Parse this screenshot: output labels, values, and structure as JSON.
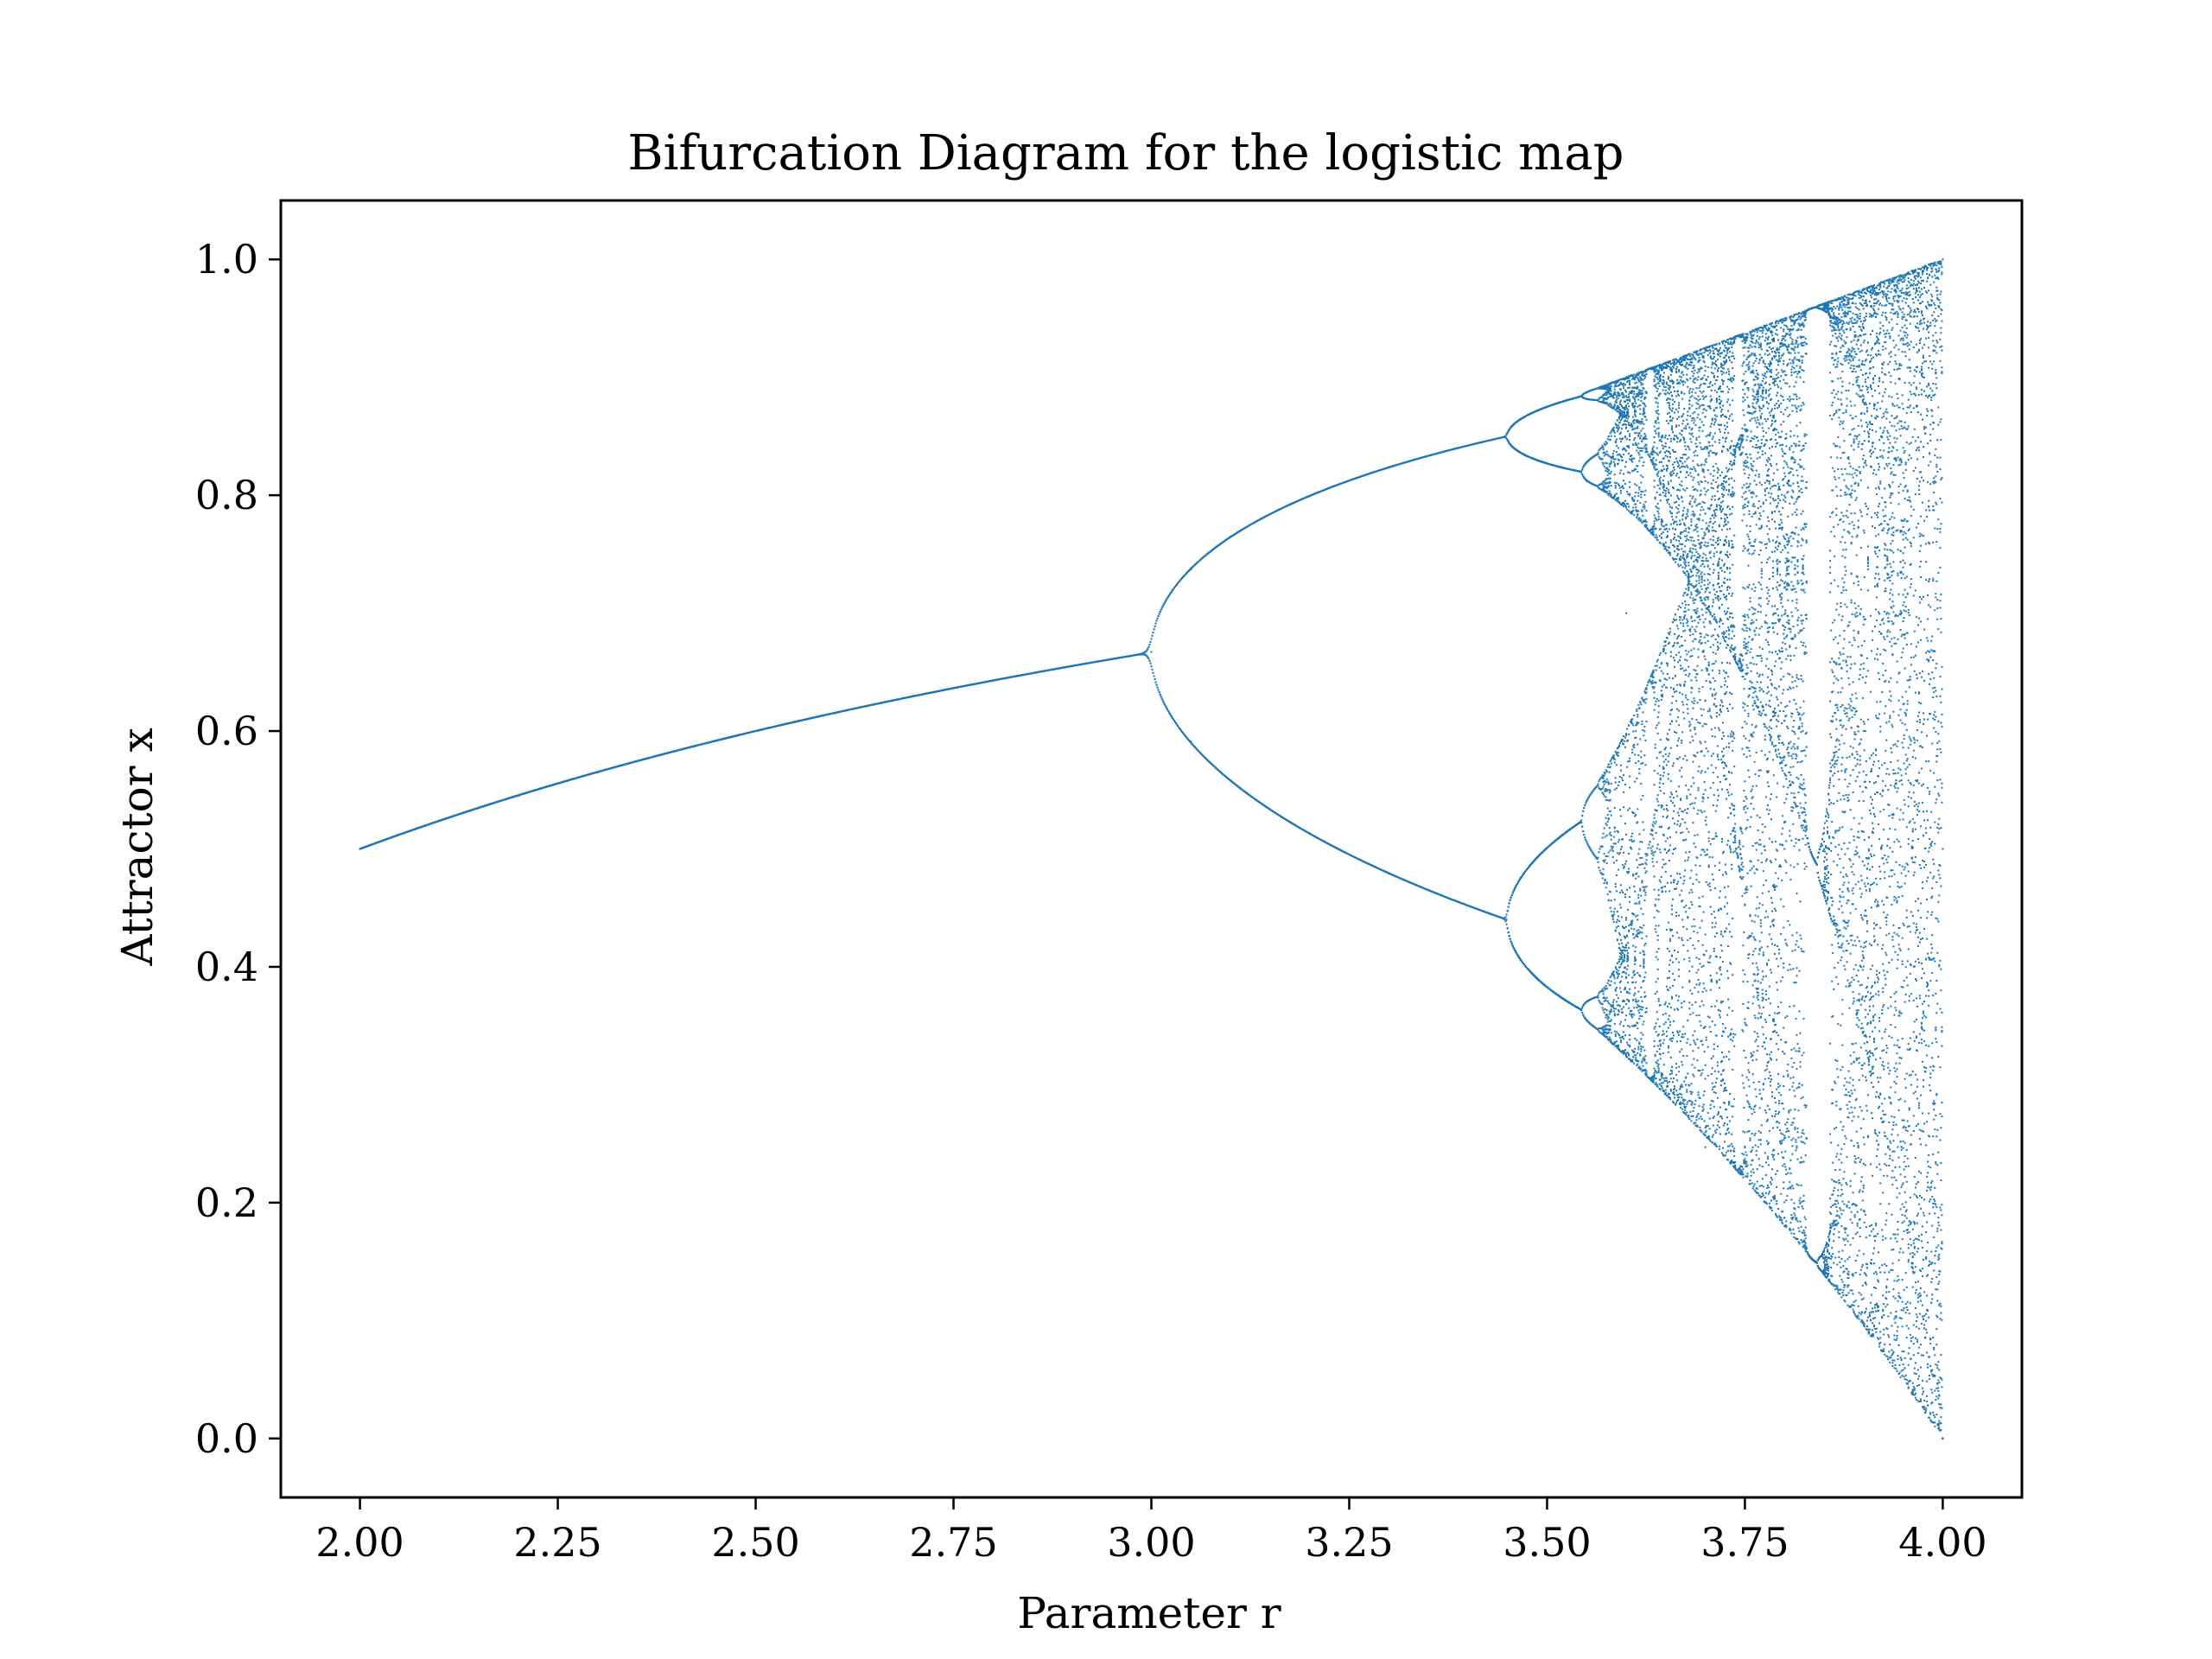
{
  "chart_data": {
    "type": "scatter",
    "title": "Bifurcation Diagram for the logistic map",
    "xlabel": "Parameter r",
    "ylabel": "Attractor x",
    "xlim": [
      1.9,
      4.1
    ],
    "ylim": [
      -0.05,
      1.05
    ],
    "x_ticks": [
      "2.00",
      "2.25",
      "2.50",
      "2.75",
      "3.00",
      "3.25",
      "3.50",
      "3.75",
      "4.00"
    ],
    "y_ticks": [
      "0.0",
      "0.2",
      "0.4",
      "0.6",
      "0.8",
      "1.0"
    ],
    "grid": false,
    "legend": "none",
    "marker_color": "#1f77b4",
    "series": [
      {
        "points": [
          [
            2.0,
            0.5
          ],
          [
            2.1,
            0.524
          ],
          [
            2.2,
            0.545
          ],
          [
            2.3,
            0.565
          ],
          [
            2.4,
            0.583
          ],
          [
            2.5,
            0.6
          ],
          [
            2.6,
            0.615
          ],
          [
            2.7,
            0.63
          ],
          [
            2.8,
            0.643
          ],
          [
            2.9,
            0.655
          ],
          [
            3.0,
            0.667
          ],
          [
            3.05,
            0.737
          ],
          [
            3.05,
            0.591
          ],
          [
            3.1,
            0.765
          ],
          [
            3.1,
            0.558
          ],
          [
            3.2,
            0.799
          ],
          [
            3.2,
            0.513
          ],
          [
            3.3,
            0.824
          ],
          [
            3.3,
            0.479
          ],
          [
            3.4,
            0.842
          ],
          [
            3.4,
            0.452
          ],
          [
            3.449,
            0.852
          ],
          [
            3.449,
            0.44
          ],
          [
            3.5,
            0.875
          ],
          [
            3.5,
            0.383
          ],
          [
            3.5,
            0.827
          ],
          [
            3.5,
            0.501
          ],
          [
            3.55,
            0.887
          ],
          [
            3.55,
            0.355
          ],
          [
            3.55,
            0.812
          ],
          [
            3.55,
            0.541
          ],
          [
            3.6,
            0.9
          ],
          [
            3.7,
            0.925
          ],
          [
            3.8,
            0.95
          ],
          [
            3.9,
            0.975
          ],
          [
            4.0,
            1.0
          ],
          [
            3.6,
            0.324
          ],
          [
            3.7,
            0.247
          ],
          [
            3.8,
            0.18
          ],
          [
            3.9,
            0.096
          ],
          [
            4.0,
            0.0
          ],
          [
            3.6,
            0.7
          ],
          [
            3.7,
            0.55
          ],
          [
            3.8,
            0.5
          ],
          [
            3.9,
            0.6
          ],
          [
            4.0,
            0.5
          ],
          [
            3.83,
            0.957
          ],
          [
            3.83,
            0.156
          ],
          [
            3.83,
            0.505
          ]
        ]
      }
    ]
  }
}
